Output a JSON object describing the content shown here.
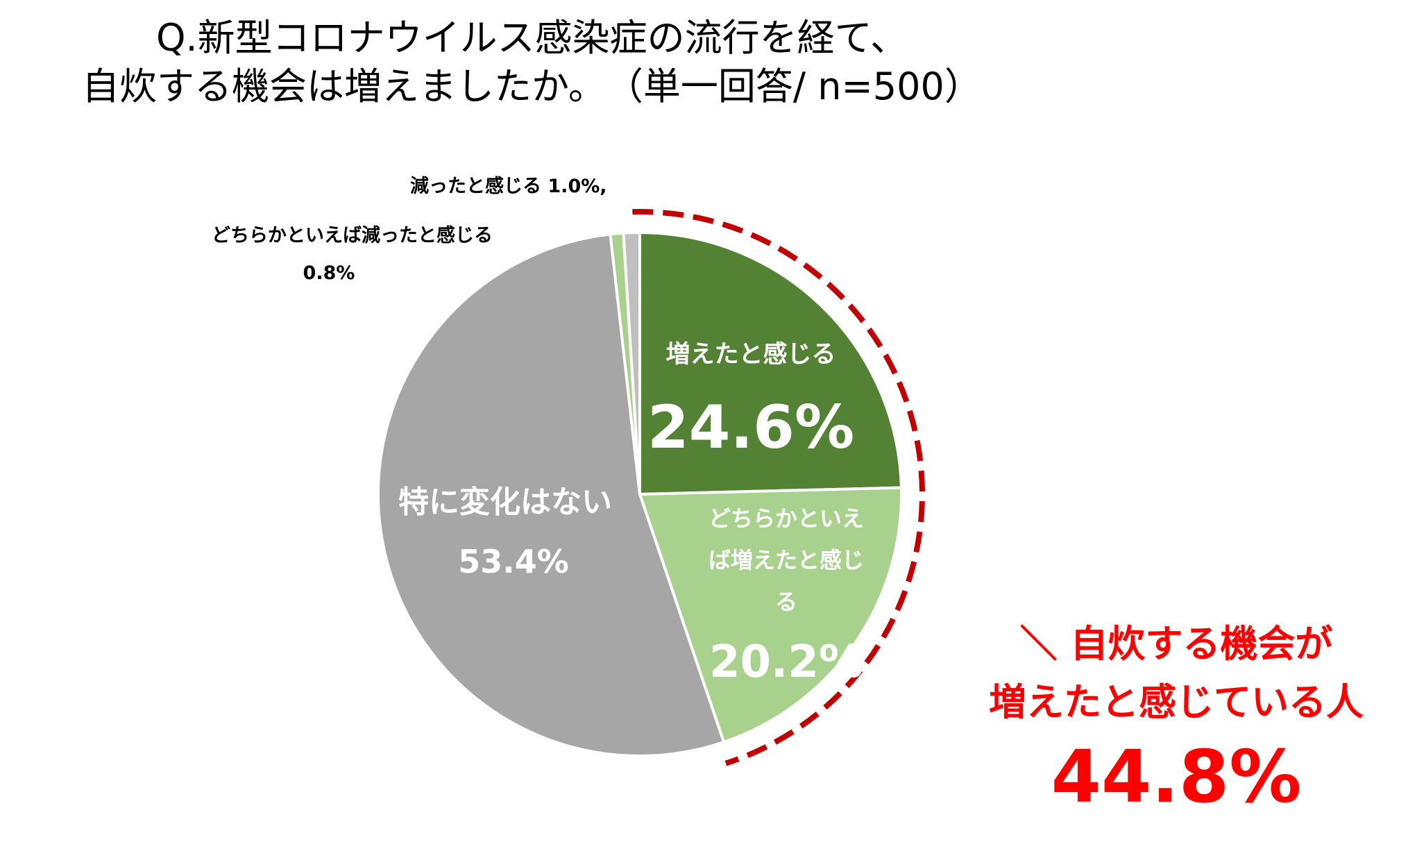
{
  "title": {
    "line1": "Q.新型コロナウイルス感染症の流行を経て、",
    "line2": "自炊する機会は増えましたか。　（単一回答/ n=500）"
  },
  "chart_data": {
    "type": "pie",
    "title": "Q.新型コロナウイルス感染症の流行を経て、自炊する機会は増えましたか。　（単一回答/ n=500）",
    "slices": [
      {
        "name": "増えたと感じる",
        "value": 24.6,
        "label": "24.6%",
        "color": "#548235"
      },
      {
        "name": "どちらかといえば増えたと感じる",
        "value": 20.2,
        "label": "20.2%",
        "color": "#a9d18e"
      },
      {
        "name": "特に変化はない",
        "value": 53.4,
        "label": "53.4%",
        "color": "#a6a6a6"
      },
      {
        "name": "どちらかといえば減ったと感じる",
        "value": 0.8,
        "label": "0.8%",
        "color": "#a9d18e"
      },
      {
        "name": "減ったと感じる",
        "value": 1.0,
        "label": "1.0%",
        "color": "#bfbfbf"
      }
    ],
    "labels": {
      "s0_name": "増えたと感じる",
      "s0_value": "24.6%",
      "s1_name_l1": "どちらかといえ",
      "s1_name_l2": "ば増えたと感じ",
      "s1_name_l3": "る",
      "s1_value": "20.2%",
      "s2_name": "特に変化はない",
      "s2_value": "53.4%",
      "s3_name": "どちらかといえば減ったと感じる",
      "s3_value": "0.8%",
      "s4_text": "減ったと感じる 1.0%,"
    },
    "callout": {
      "line1": "＼ 自炊する機会が",
      "line2": "増えたと感じている人",
      "value": "44.8%",
      "color": "#ff0000",
      "arc_color": "#c00000"
    }
  }
}
